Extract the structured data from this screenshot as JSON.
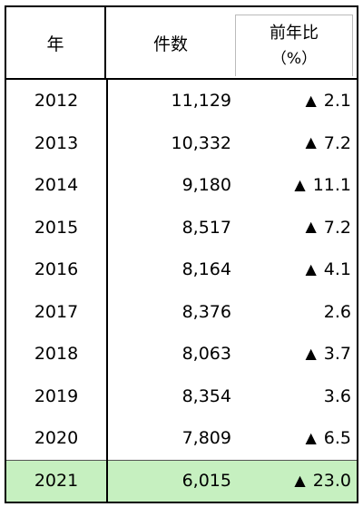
{
  "header": {
    "year": "年",
    "count": "件数",
    "ratio_title": "前年比",
    "ratio_unit": "（%）"
  },
  "rows": [
    {
      "year": "2012",
      "count": "11,129",
      "decrease": true,
      "ratio": "2.1"
    },
    {
      "year": "2013",
      "count": "10,332",
      "decrease": true,
      "ratio": "7.2"
    },
    {
      "year": "2014",
      "count": "9,180",
      "decrease": true,
      "ratio": "11.1"
    },
    {
      "year": "2015",
      "count": "8,517",
      "decrease": true,
      "ratio": "7.2"
    },
    {
      "year": "2016",
      "count": "8,164",
      "decrease": true,
      "ratio": "4.1"
    },
    {
      "year": "2017",
      "count": "8,376",
      "decrease": false,
      "ratio": "2.6"
    },
    {
      "year": "2018",
      "count": "8,063",
      "decrease": true,
      "ratio": "3.7"
    },
    {
      "year": "2019",
      "count": "8,354",
      "decrease": false,
      "ratio": "3.6"
    },
    {
      "year": "2020",
      "count": "7,809",
      "decrease": true,
      "ratio": "6.5"
    },
    {
      "year": "2021",
      "count": "6,015",
      "decrease": true,
      "ratio": "23.0",
      "highlight": true
    }
  ],
  "colors": {
    "highlight": "#c6f0c0",
    "border": "#000000"
  },
  "symbols": {
    "decrease": "▲"
  }
}
